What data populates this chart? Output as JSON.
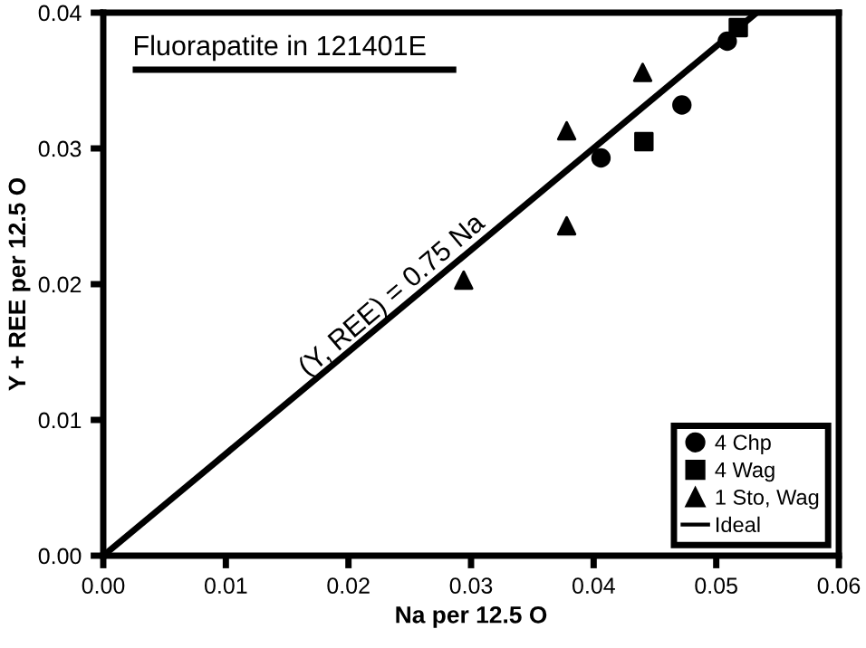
{
  "chart_data": {
    "type": "scatter",
    "title": "Fluorapatite in 121401E",
    "xlabel": "Na per 12.5 O",
    "ylabel": "Y + REE per 12.5 O",
    "series": [
      {
        "name": "4 Chp",
        "color": "#000000",
        "marker": "circle",
        "x": [
          0.0406,
          0.0472,
          0.0509
        ],
        "values": [
          0.0293,
          0.0332,
          0.0379
        ]
      },
      {
        "name": "4 Wag",
        "color": "#000000",
        "marker": "square",
        "x": [
          0.0441,
          0.0518
        ],
        "values": [
          0.0305,
          0.0389
        ]
      },
      {
        "name": "1 Sto, Wag",
        "color": "#000000",
        "marker": "triangle",
        "x": [
          0.044,
          0.0378,
          0.0378,
          0.0294
        ],
        "values": [
          0.0356,
          0.0313,
          0.0243,
          0.0203
        ]
      },
      {
        "name": "Ideal",
        "type": "line",
        "color": "#000000",
        "marker": "none",
        "line_style": "solid",
        "x": [
          0,
          0.0533
        ],
        "values": [
          0,
          0.04
        ]
      }
    ],
    "annotations": [
      {
        "text": "(Y, REE) = 0.75 Na",
        "x": 0.017,
        "y": 0.0128
      }
    ],
    "xlim": [
      0,
      0.06
    ],
    "ylim": [
      0,
      0.04
    ],
    "xticks": [
      {
        "value": 0,
        "label": "0.00"
      },
      0.01,
      0.02,
      0.03,
      0.04,
      0.05,
      0.06
    ],
    "yticks": [
      {
        "value": 0,
        "label": "0.00"
      },
      0.01,
      0.02,
      0.03,
      0.04
    ],
    "grid": false,
    "legend": "bottom right"
  }
}
